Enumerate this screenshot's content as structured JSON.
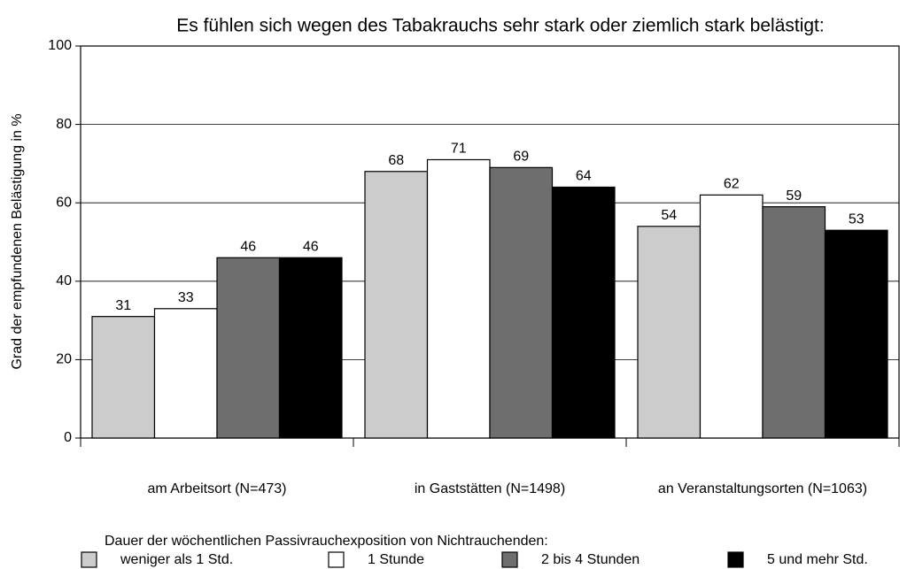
{
  "chart_data": {
    "type": "bar",
    "title": "Es fühlen sich wegen des Tabakrauchs sehr stark oder ziemlich stark belästigt:",
    "y_label": "Grad der empfundenen Belästigung in %",
    "legend_title": "Dauer der wöchentlichen Passivrauchexposition von Nichtrauchenden:",
    "categories": [
      "am Arbeitsort (N=473)",
      "in Gaststätten (N=1498)",
      "an Veranstaltungsorten (N=1063)"
    ],
    "series": [
      {
        "name": "weniger als 1 Std.",
        "color": "#cccccc",
        "values": [
          31,
          68,
          54
        ]
      },
      {
        "name": "1 Stunde",
        "color": "#ffffff",
        "values": [
          33,
          71,
          62
        ]
      },
      {
        "name": "2 bis 4 Stunden",
        "color": "#6e6e6e",
        "values": [
          46,
          69,
          59
        ]
      },
      {
        "name": "5 und mehr  Std.",
        "color": "#000000",
        "values": [
          46,
          64,
          53
        ]
      }
    ],
    "ylim": [
      0,
      100
    ],
    "yticks": [
      0,
      20,
      40,
      60,
      80,
      100
    ],
    "grid": true,
    "legend": "bottom"
  }
}
